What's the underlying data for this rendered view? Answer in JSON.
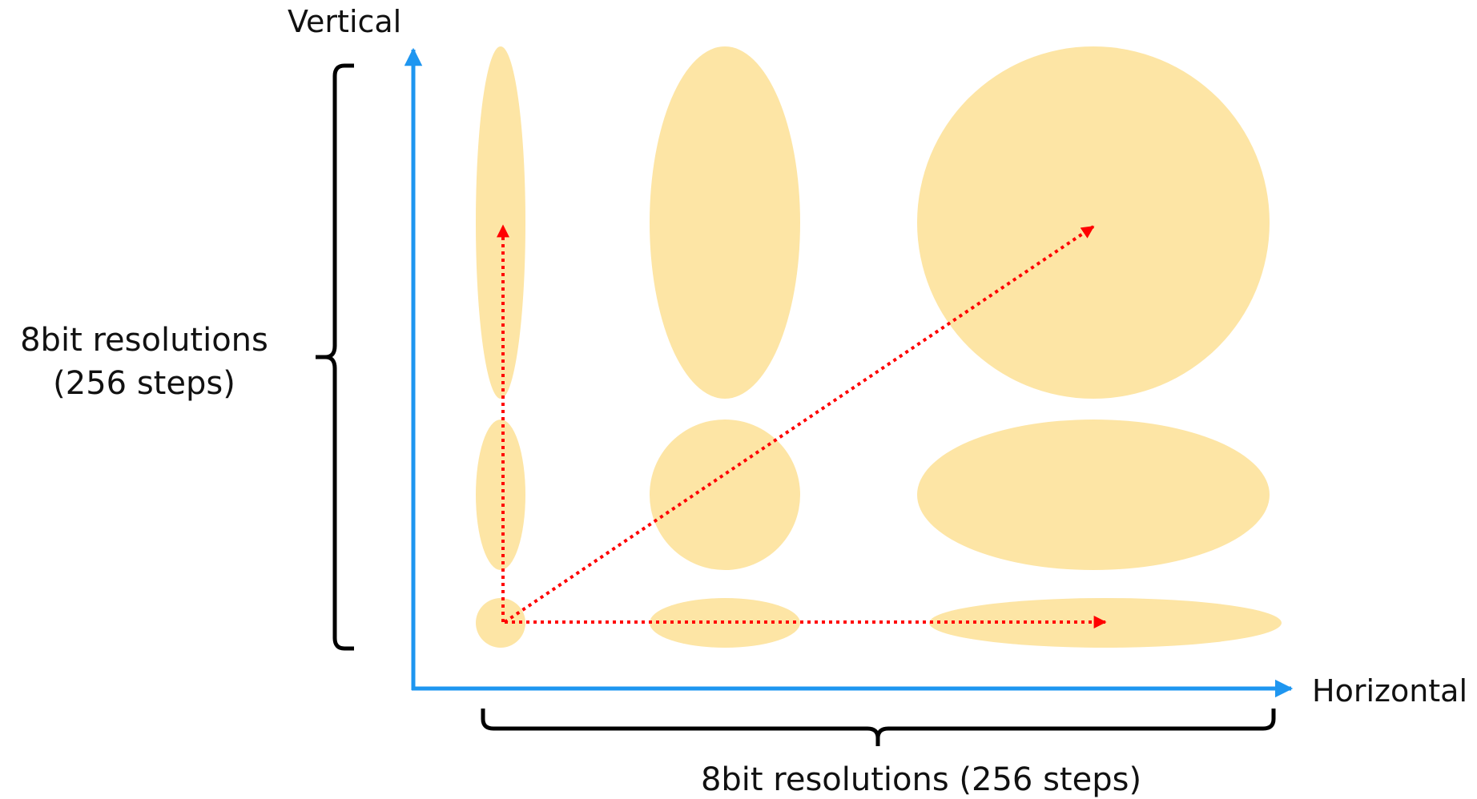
{
  "axes": {
    "vertical_label": "Vertical",
    "horizontal_label": "Horizontal",
    "axis_color": "#1e96f0"
  },
  "resolution": {
    "vertical_line1": "8bit resolutions",
    "vertical_line2": "(256 steps)",
    "horizontal": "8bit resolutions (256 steps)"
  },
  "colors": {
    "shape_fill": "#fde5a5",
    "arrow_color": "#ff0000",
    "bracket_color": "#000000"
  }
}
